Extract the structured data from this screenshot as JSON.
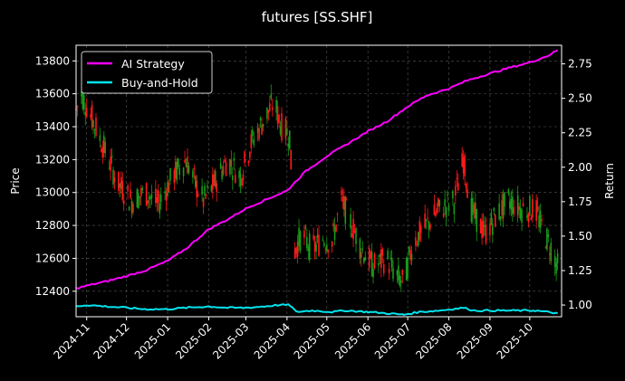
{
  "chart_data": {
    "type": "line",
    "title": "futures [SS.SHF]",
    "ylabel_left": "Price",
    "ylabel_right": "Return",
    "grid": true,
    "legend_position": "top-left",
    "x_range": [
      "2024-10-24",
      "2025-10-25"
    ],
    "x_ticks": [
      "2024-11",
      "2024-12",
      "2025-01",
      "2025-02",
      "2025-03",
      "2025-04",
      "2025-05",
      "2025-06",
      "2025-07",
      "2025-08",
      "2025-09",
      "2025-10"
    ],
    "y_left_ticks": [
      12400,
      12600,
      12800,
      13000,
      13200,
      13400,
      13600,
      13800
    ],
    "y_left_range": [
      12245,
      13895
    ],
    "y_right_ticks": [
      1.0,
      1.25,
      1.5,
      1.75,
      2.0,
      2.25,
      2.5,
      2.75
    ],
    "y_right_range": [
      0.915,
      2.885
    ],
    "colors": {
      "background": "#000000",
      "grid": "#555555",
      "ai_strategy": "#ff00ff",
      "buy_and_hold": "#00e5ee",
      "candle_up": "#ff1a1a",
      "candle_down": "#1a9c1a"
    },
    "price_trend": [
      {
        "x": "2024-10-24",
        "y": 13500
      },
      {
        "x": "2024-10-28",
        "y": 13600
      },
      {
        "x": "2024-11-05",
        "y": 13450
      },
      {
        "x": "2024-11-15",
        "y": 13250
      },
      {
        "x": "2024-11-25",
        "y": 13050
      },
      {
        "x": "2024-12-05",
        "y": 12950
      },
      {
        "x": "2024-12-15",
        "y": 13000
      },
      {
        "x": "2024-12-25",
        "y": 12930
      },
      {
        "x": "2025-01-05",
        "y": 13100
      },
      {
        "x": "2025-01-15",
        "y": 13200
      },
      {
        "x": "2025-01-22",
        "y": 13050
      },
      {
        "x": "2025-01-28",
        "y": 12950
      },
      {
        "x": "2025-02-05",
        "y": 13050
      },
      {
        "x": "2025-02-15",
        "y": 13200
      },
      {
        "x": "2025-02-25",
        "y": 13100
      },
      {
        "x": "2025-03-05",
        "y": 13300
      },
      {
        "x": "2025-03-15",
        "y": 13450
      },
      {
        "x": "2025-03-22",
        "y": 13550
      },
      {
        "x": "2025-03-28",
        "y": 13400
      },
      {
        "x": "2025-04-03",
        "y": 13350
      },
      {
        "x": "2025-04-07",
        "y": 12650
      },
      {
        "x": "2025-04-12",
        "y": 12750
      },
      {
        "x": "2025-04-20",
        "y": 12650
      },
      {
        "x": "2025-04-28",
        "y": 12720
      },
      {
        "x": "2025-05-05",
        "y": 12700
      },
      {
        "x": "2025-05-12",
        "y": 12950
      },
      {
        "x": "2025-05-20",
        "y": 12800
      },
      {
        "x": "2025-05-28",
        "y": 12650
      },
      {
        "x": "2025-06-05",
        "y": 12550
      },
      {
        "x": "2025-06-15",
        "y": 12600
      },
      {
        "x": "2025-06-22",
        "y": 12500
      },
      {
        "x": "2025-06-28",
        "y": 12450
      },
      {
        "x": "2025-07-05",
        "y": 12700
      },
      {
        "x": "2025-07-15",
        "y": 12800
      },
      {
        "x": "2025-07-25",
        "y": 12900
      },
      {
        "x": "2025-08-05",
        "y": 12950
      },
      {
        "x": "2025-08-12",
        "y": 13200
      },
      {
        "x": "2025-08-18",
        "y": 12900
      },
      {
        "x": "2025-08-28",
        "y": 12750
      },
      {
        "x": "2025-09-05",
        "y": 12850
      },
      {
        "x": "2025-09-15",
        "y": 12950
      },
      {
        "x": "2025-09-25",
        "y": 12900
      },
      {
        "x": "2025-10-05",
        "y": 12900
      },
      {
        "x": "2025-10-12",
        "y": 12750
      },
      {
        "x": "2025-10-18",
        "y": 12650
      },
      {
        "x": "2025-10-22",
        "y": 12550
      }
    ],
    "series": [
      {
        "name": "AI Strategy",
        "axis": "right",
        "color": "#ff00ff",
        "points": [
          {
            "x": "2024-10-24",
            "y": 1.12
          },
          {
            "x": "2024-11-01",
            "y": 1.14
          },
          {
            "x": "2024-11-15",
            "y": 1.17
          },
          {
            "x": "2024-12-01",
            "y": 1.21
          },
          {
            "x": "2024-12-15",
            "y": 1.25
          },
          {
            "x": "2025-01-01",
            "y": 1.32
          },
          {
            "x": "2025-01-15",
            "y": 1.41
          },
          {
            "x": "2025-02-01",
            "y": 1.55
          },
          {
            "x": "2025-02-15",
            "y": 1.62
          },
          {
            "x": "2025-03-01",
            "y": 1.7
          },
          {
            "x": "2025-03-15",
            "y": 1.76
          },
          {
            "x": "2025-04-01",
            "y": 1.83
          },
          {
            "x": "2025-04-15",
            "y": 1.97
          },
          {
            "x": "2025-05-01",
            "y": 2.08
          },
          {
            "x": "2025-05-15",
            "y": 2.16
          },
          {
            "x": "2025-06-01",
            "y": 2.26
          },
          {
            "x": "2025-06-15",
            "y": 2.33
          },
          {
            "x": "2025-07-01",
            "y": 2.44
          },
          {
            "x": "2025-07-15",
            "y": 2.52
          },
          {
            "x": "2025-08-01",
            "y": 2.57
          },
          {
            "x": "2025-08-15",
            "y": 2.63
          },
          {
            "x": "2025-09-01",
            "y": 2.68
          },
          {
            "x": "2025-09-15",
            "y": 2.72
          },
          {
            "x": "2025-10-01",
            "y": 2.76
          },
          {
            "x": "2025-10-15",
            "y": 2.81
          },
          {
            "x": "2025-10-22",
            "y": 2.85
          }
        ]
      },
      {
        "name": "Buy-and-Hold",
        "axis": "right",
        "color": "#00e5ee",
        "points": [
          {
            "x": "2024-10-24",
            "y": 0.99
          },
          {
            "x": "2024-11-01",
            "y": 1.0
          },
          {
            "x": "2024-11-15",
            "y": 0.99
          },
          {
            "x": "2024-12-01",
            "y": 0.98
          },
          {
            "x": "2024-12-15",
            "y": 0.97
          },
          {
            "x": "2025-01-01",
            "y": 0.97
          },
          {
            "x": "2025-01-15",
            "y": 0.98
          },
          {
            "x": "2025-02-01",
            "y": 0.99
          },
          {
            "x": "2025-02-15",
            "y": 0.98
          },
          {
            "x": "2025-03-01",
            "y": 0.98
          },
          {
            "x": "2025-03-15",
            "y": 0.99
          },
          {
            "x": "2025-03-25",
            "y": 1.0
          },
          {
            "x": "2025-04-03",
            "y": 1.0
          },
          {
            "x": "2025-04-08",
            "y": 0.95
          },
          {
            "x": "2025-04-20",
            "y": 0.96
          },
          {
            "x": "2025-05-05",
            "y": 0.95
          },
          {
            "x": "2025-05-15",
            "y": 0.96
          },
          {
            "x": "2025-06-01",
            "y": 0.95
          },
          {
            "x": "2025-06-15",
            "y": 0.94
          },
          {
            "x": "2025-06-28",
            "y": 0.93
          },
          {
            "x": "2025-07-10",
            "y": 0.95
          },
          {
            "x": "2025-07-25",
            "y": 0.96
          },
          {
            "x": "2025-08-12",
            "y": 0.98
          },
          {
            "x": "2025-08-20",
            "y": 0.96
          },
          {
            "x": "2025-09-05",
            "y": 0.96
          },
          {
            "x": "2025-09-20",
            "y": 0.96
          },
          {
            "x": "2025-10-05",
            "y": 0.96
          },
          {
            "x": "2025-10-22",
            "y": 0.94
          }
        ]
      }
    ]
  }
}
